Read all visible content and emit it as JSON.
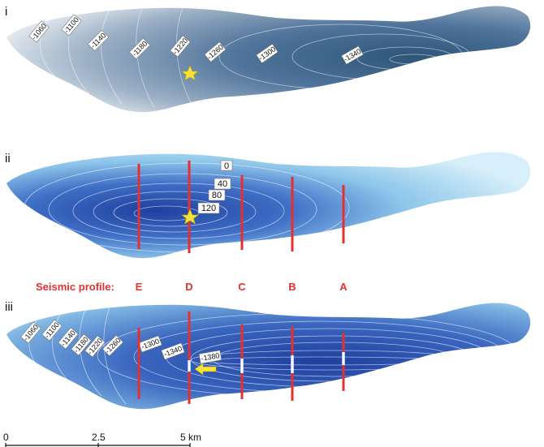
{
  "panels": {
    "i": {
      "label": "i",
      "contour_labels": [
        "-1060",
        "-1100",
        "-1140",
        "-1180",
        "-1220",
        "-1260",
        "-1300",
        "-1340"
      ]
    },
    "ii": {
      "label": "ii",
      "isopach_labels": [
        "0",
        "40",
        "80",
        "120"
      ]
    },
    "iii": {
      "label": "iii",
      "contour_labels": [
        "-1060",
        "-1100",
        "-1140",
        "-1180",
        "-1220",
        "-1260",
        "-1300",
        "-1340",
        "-1380"
      ]
    }
  },
  "seismic": {
    "title": "Seismic profile:",
    "profiles": [
      "E",
      "D",
      "C",
      "B",
      "A"
    ]
  },
  "scale_bar": {
    "ticks": [
      "0",
      "2.5",
      "5 km"
    ]
  },
  "colors": {
    "profile_line": "#e53030",
    "marker_star": "#f6e23a",
    "arrow": "#f6e23a",
    "deep_blue": "#1f3f9e",
    "shallow_blue": "#cdeaf7",
    "grey_blue": "#4f6f8f"
  },
  "icons": [
    "star-icon",
    "arrow-icon"
  ]
}
